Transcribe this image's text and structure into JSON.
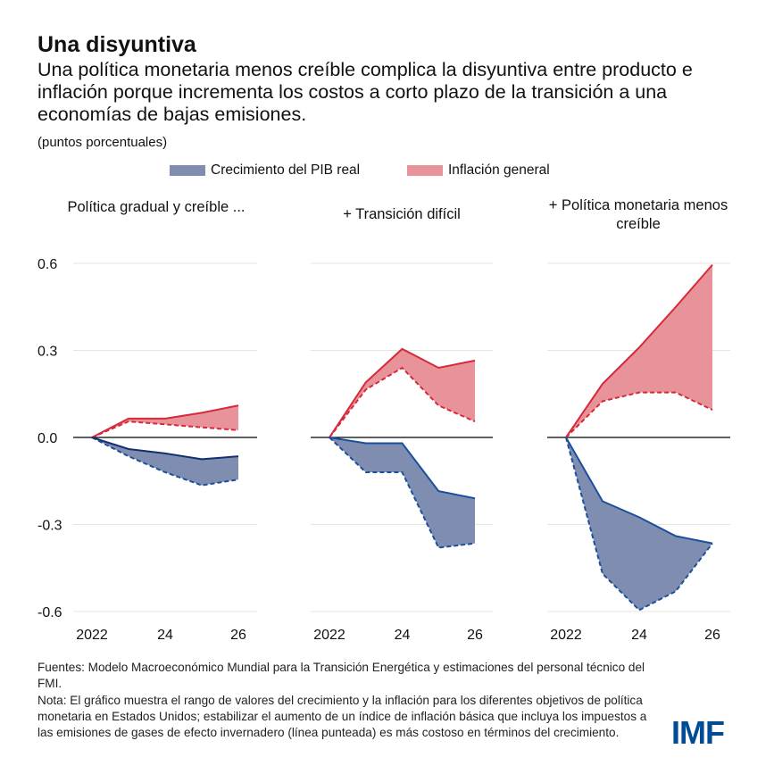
{
  "title": "Una disyuntiva",
  "subtitle": "Una política monetaria menos creíble complica la disyuntiva entre producto e inflación porque incrementa los costos a corto plazo de la transición a una economías de bajas emisiones.",
  "units": "(puntos porcentuales)",
  "footnote_sources": "Fuentes: Modelo Macroeconómico Mundial para la Transición Energética y estimaciones del personal técnico del FMI.",
  "footnote_note": "Nota: El gráfico muestra el rango de valores del crecimiento y la inflación para los diferentes objetivos de política monetaria en Estados Unidos; estabilizar el aumento de un índice de inflación básica que incluya los impuestos a las emisiones de gases de efecto invernadero (línea punteada) es más costoso en términos del crecimiento.",
  "logo": "IMF",
  "colors": {
    "gdp_fill": "#7f8db0",
    "gdp_line": "#1a4f9c",
    "gdp_line_solid": "#12306f",
    "infl_fill": "#e8939a",
    "infl_line": "#d6293a"
  },
  "chart_data": {
    "type": "area",
    "legend": {
      "placement": "top",
      "entries": [
        "Crecimiento del PIB real",
        "Inflación general"
      ]
    },
    "x": [
      2022,
      2023,
      2024,
      2025,
      2026
    ],
    "xtick_labels": [
      "2022",
      "24",
      "26"
    ],
    "ytick_labels": [
      "0.6",
      "0.3",
      "0.0",
      "-0.3",
      "-0.6"
    ],
    "ylim": [
      -0.6,
      0.6
    ],
    "grid": true,
    "panels": [
      {
        "title": "Política gradual y creíble ...",
        "infl_solid": [
          0,
          0.065,
          0.065,
          0.085,
          0.11
        ],
        "infl_dashed": [
          0,
          0.055,
          0.045,
          0.035,
          0.025
        ],
        "gdp_solid": [
          0,
          -0.04,
          -0.055,
          -0.075,
          -0.065
        ],
        "gdp_dashed": [
          0,
          -0.065,
          -0.12,
          -0.165,
          -0.145
        ]
      },
      {
        "title": "+ Transición difícil",
        "infl_solid": [
          0,
          0.19,
          0.305,
          0.24,
          0.265
        ],
        "infl_dashed": [
          0,
          0.165,
          0.24,
          0.11,
          0.055
        ],
        "gdp_solid": [
          0,
          -0.02,
          -0.02,
          -0.185,
          -0.21
        ],
        "gdp_dashed": [
          0,
          -0.12,
          -0.12,
          -0.38,
          -0.365
        ]
      },
      {
        "title": "+ Política monetaria menos creíble",
        "infl_solid": [
          0,
          0.185,
          0.31,
          0.45,
          0.595
        ],
        "infl_dashed": [
          0,
          0.125,
          0.155,
          0.155,
          0.095
        ],
        "gdp_solid": [
          0,
          -0.22,
          -0.275,
          -0.34,
          -0.365
        ],
        "gdp_dashed": [
          0,
          -0.47,
          -0.595,
          -0.53,
          -0.365
        ]
      }
    ]
  }
}
